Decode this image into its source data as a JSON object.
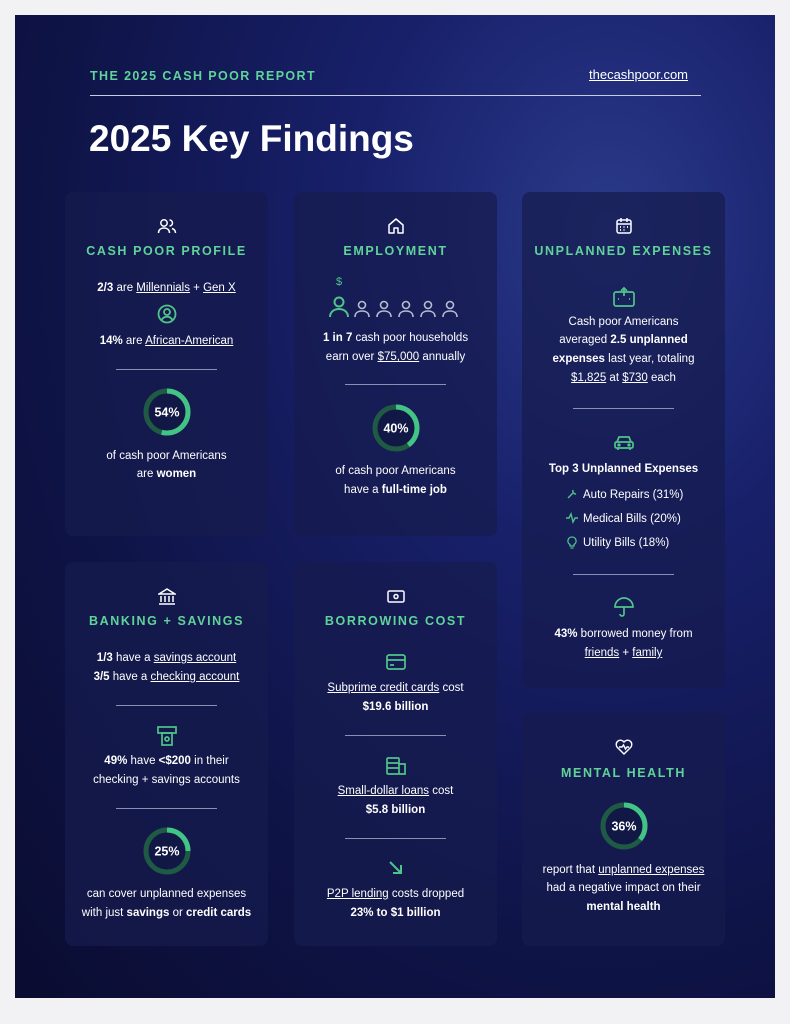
{
  "header": {
    "report": "THE 2025 CASH POOR REPORT",
    "site": "thecashpoor.com",
    "title": "2025 Key Findings"
  },
  "cards": {
    "profile": {
      "title": "CASH POOR PROFILE",
      "lines": [
        [
          "2/3",
          " are ",
          "Millennials",
          " + ",
          "Gen X"
        ],
        [
          "14%",
          " are ",
          "African-American"
        ]
      ],
      "donut": {
        "percent": 54,
        "label": "54%"
      },
      "caption": [
        [
          "of cash poor Americans"
        ],
        [
          "are ",
          "women"
        ]
      ]
    },
    "employment": {
      "title": "EMPLOYMENT",
      "symbol": "$",
      "lines": [
        [
          "1 in 7",
          " cash poor households"
        ],
        [
          "earn over ",
          "$75,000",
          " annually"
        ]
      ],
      "donut": {
        "percent": 40,
        "label": "40%"
      },
      "caption": [
        [
          "of cash poor Americans"
        ],
        [
          "have a ",
          "full-time job"
        ]
      ]
    },
    "unplanned": {
      "title": "UNPLANNED EXPENSES",
      "lines": [
        [
          "Cash poor Americans"
        ],
        [
          "averaged ",
          "2.5 unplanned"
        ],
        [
          "expenses",
          " last year, totaling"
        ],
        [
          "$1,825",
          " at ",
          "$730",
          " each"
        ]
      ],
      "top_title": "Top 3 Unplanned Expenses",
      "top": [
        "Auto Repairs (31%)",
        "Medical Bills (20%)",
        "Utility Bills (18%)"
      ],
      "borrow": [
        [
          "43%",
          " borrowed money from"
        ],
        [
          "friends",
          " + ",
          "family"
        ]
      ]
    },
    "banking": {
      "title": "BANKING + SAVINGS",
      "lines": [
        [
          "1/3",
          " have a ",
          "savings account"
        ],
        [
          "3/5",
          " have a ",
          "checking account"
        ]
      ],
      "balance": [
        [
          "49%",
          " have ",
          "<$200",
          " in their"
        ],
        [
          "checking + savings accounts"
        ]
      ],
      "donut": {
        "percent": 25,
        "label": "25%"
      },
      "caption": [
        [
          "can cover unplanned expenses"
        ],
        [
          "with just ",
          "savings",
          " or ",
          "credit cards"
        ]
      ]
    },
    "borrowing": {
      "title": "BORROWING COST",
      "credit": [
        [
          "Subprime credit cards",
          " cost"
        ],
        [
          "$19.6 billion"
        ]
      ],
      "loans": [
        [
          "Small-dollar loans",
          " cost"
        ],
        [
          "$5.8 billion"
        ]
      ],
      "p2p": [
        [
          "P2P lending",
          " costs dropped"
        ],
        [
          "23% to $1 billion"
        ]
      ]
    },
    "mental": {
      "title": "MENTAL HEALTH",
      "donut": {
        "percent": 36,
        "label": "36%"
      },
      "caption": [
        [
          "report that ",
          "unplanned expenses"
        ],
        [
          "had a negative impact on their"
        ],
        [
          "mental health"
        ]
      ]
    }
  }
}
